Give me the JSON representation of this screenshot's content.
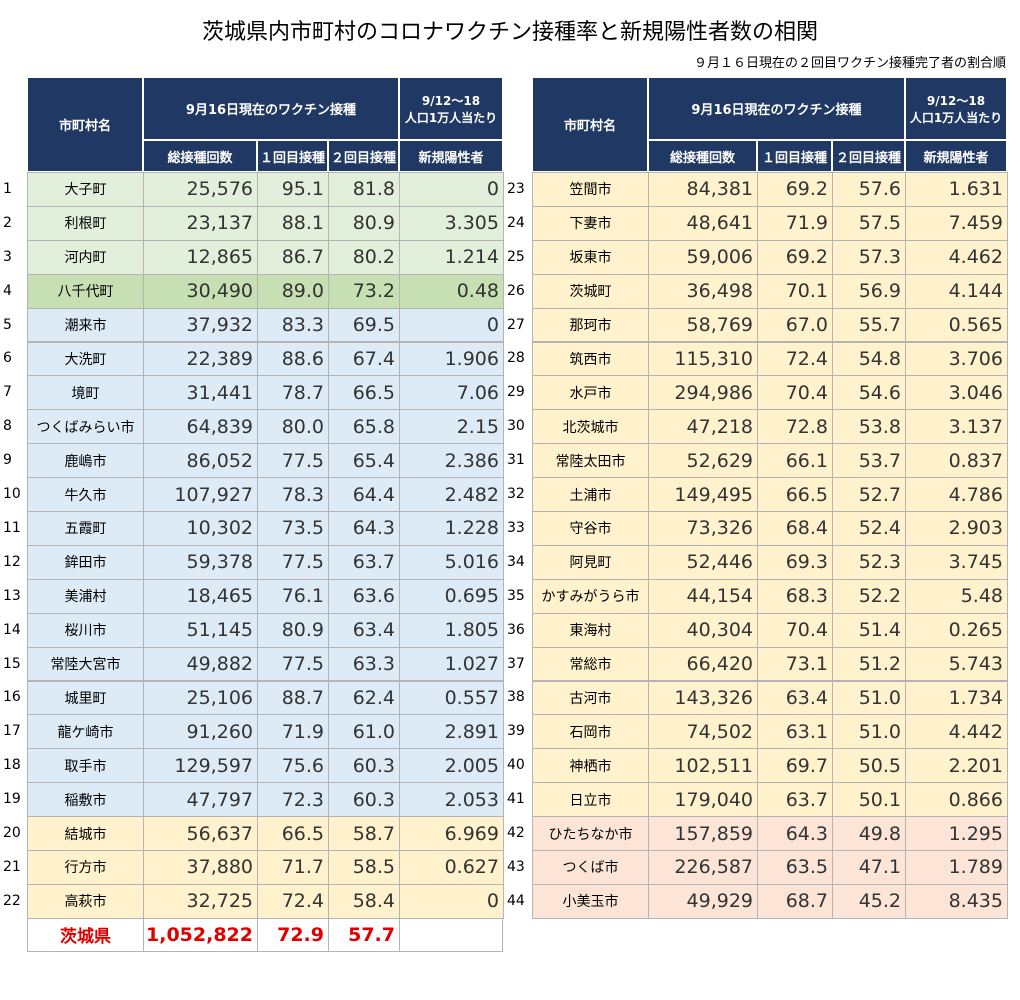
{
  "title": "茨城県内市町村のコロナワクチン接種率と新規陽性者数の相関",
  "subtitle": "９月１６日現在の２回目ワクチン接種完了者の割合順",
  "tables": [
    {
      "header": {
        "name": "市町村名",
        "vaccination": "9月16日現在のワクチン接種",
        "period": "9/12～18",
        "period_note": "人口1万人当たり",
        "total": "総接種回数",
        "first": "１回目接種",
        "second": "２回目接種",
        "new_cases": "新規陽性者"
      },
      "rows": [
        [
          "1",
          "大子町",
          "25,576",
          "95.1",
          "81.8",
          "0"
        ],
        [
          "2",
          "利根町",
          "23,137",
          "88.1",
          "80.9",
          "3.305"
        ],
        [
          "3",
          "河内町",
          "12,865",
          "86.7",
          "80.2",
          "1.214"
        ],
        [
          "4",
          "八千代町",
          "30,490",
          "89.0",
          "73.2",
          "0.48"
        ],
        [
          "5",
          "潮来市",
          "37,932",
          "83.3",
          "69.5",
          "0"
        ],
        [
          "6",
          "大洗町",
          "22,389",
          "88.6",
          "67.4",
          "1.906"
        ],
        [
          "7",
          "境町",
          "31,441",
          "78.7",
          "66.5",
          "7.06"
        ],
        [
          "8",
          "つくばみらい市",
          "64,839",
          "80.0",
          "65.8",
          "2.15"
        ],
        [
          "9",
          "鹿嶋市",
          "86,052",
          "77.5",
          "65.4",
          "2.386"
        ],
        [
          "10",
          "牛久市",
          "107,927",
          "78.3",
          "64.4",
          "2.482"
        ],
        [
          "11",
          "五霞町",
          "10,302",
          "73.5",
          "64.3",
          "1.228"
        ],
        [
          "12",
          "鉾田市",
          "59,378",
          "77.5",
          "63.7",
          "5.016"
        ],
        [
          "13",
          "美浦村",
          "18,465",
          "76.1",
          "63.6",
          "0.695"
        ],
        [
          "14",
          "桜川市",
          "51,145",
          "80.9",
          "63.4",
          "1.805"
        ],
        [
          "15",
          "常陸大宮市",
          "49,882",
          "77.5",
          "63.3",
          "1.027"
        ],
        [
          "16",
          "城里町",
          "25,106",
          "88.7",
          "62.4",
          "0.557"
        ],
        [
          "17",
          "龍ケ崎市",
          "91,260",
          "71.9",
          "61.0",
          "2.891"
        ],
        [
          "18",
          "取手市",
          "129,597",
          "75.6",
          "60.3",
          "2.005"
        ],
        [
          "19",
          "稲敷市",
          "47,797",
          "72.3",
          "60.3",
          "2.053"
        ],
        [
          "20",
          "結城市",
          "56,637",
          "66.5",
          "58.7",
          "6.969"
        ],
        [
          "21",
          "行方市",
          "37,880",
          "71.7",
          "58.5",
          "0.627"
        ],
        [
          "22",
          "高萩市",
          "32,725",
          "72.4",
          "58.4",
          "0"
        ]
      ],
      "row_colors": [
        "#e2efda",
        "#e2efda",
        "#e2efda",
        "#c6e0b4",
        "#ddebf7",
        "#ddebf7",
        "#ddebf7",
        "#ddebf7",
        "#ddebf7",
        "#ddebf7",
        "#ddebf7",
        "#ddebf7",
        "#ddebf7",
        "#ddebf7",
        "#ddebf7",
        "#ddebf7",
        "#ddebf7",
        "#ddebf7",
        "#ddebf7",
        "#fff2cc",
        "#fff2cc",
        "#fff2cc"
      ],
      "total_row": [
        "茨城県",
        "1,052,822",
        "72.9",
        "57.7"
      ]
    },
    {
      "header": {
        "name": "市町村名",
        "vaccination": "9月16日現在のワクチン接種",
        "period": "9/12～18",
        "period_note": "人口1万人当たり",
        "total": "総接種回数",
        "first": "１回目接種",
        "second": "２回目接種",
        "new_cases": "新規陽性者"
      },
      "rows": [
        [
          "23",
          "笠間市",
          "84,381",
          "69.2",
          "57.6",
          "1.631"
        ],
        [
          "24",
          "下妻市",
          "48,641",
          "71.9",
          "57.5",
          "7.459"
        ],
        [
          "25",
          "坂東市",
          "59,006",
          "69.2",
          "57.3",
          "4.462"
        ],
        [
          "26",
          "茨城町",
          "36,498",
          "70.1",
          "56.9",
          "4.144"
        ],
        [
          "27",
          "那珂市",
          "58,769",
          "67.0",
          "55.7",
          "0.565"
        ],
        [
          "28",
          "筑西市",
          "115,310",
          "72.4",
          "54.8",
          "3.706"
        ],
        [
          "29",
          "水戸市",
          "294,986",
          "70.4",
          "54.6",
          "3.046"
        ],
        [
          "30",
          "北茨城市",
          "47,218",
          "72.8",
          "53.8",
          "3.137"
        ],
        [
          "31",
          "常陸太田市",
          "52,629",
          "66.1",
          "53.7",
          "0.837"
        ],
        [
          "32",
          "土浦市",
          "149,495",
          "66.5",
          "52.7",
          "4.786"
        ],
        [
          "33",
          "守谷市",
          "73,326",
          "68.4",
          "52.4",
          "2.903"
        ],
        [
          "34",
          "阿見町",
          "52,446",
          "69.3",
          "52.3",
          "3.745"
        ],
        [
          "35",
          "かすみがうら市",
          "44,154",
          "68.3",
          "52.2",
          "5.48"
        ],
        [
          "36",
          "東海村",
          "40,304",
          "70.4",
          "51.4",
          "0.265"
        ],
        [
          "37",
          "常総市",
          "66,420",
          "73.1",
          "51.2",
          "5.743"
        ],
        [
          "38",
          "古河市",
          "143,326",
          "63.4",
          "51.0",
          "1.734"
        ],
        [
          "39",
          "石岡市",
          "74,502",
          "63.1",
          "51.0",
          "4.442"
        ],
        [
          "40",
          "神栖市",
          "102,511",
          "69.7",
          "50.5",
          "2.201"
        ],
        [
          "41",
          "日立市",
          "179,040",
          "63.7",
          "50.1",
          "0.866"
        ],
        [
          "42",
          "ひたちなか市",
          "157,859",
          "64.3",
          "49.8",
          "1.295"
        ],
        [
          "43",
          "つくば市",
          "226,587",
          "63.5",
          "47.1",
          "1.789"
        ],
        [
          "44",
          "小美玉市",
          "49,929",
          "68.7",
          "45.2",
          "8.435"
        ]
      ],
      "row_colors": [
        "#fff2cc",
        "#fff2cc",
        "#fff2cc",
        "#fff2cc",
        "#fff2cc",
        "#fff2cc",
        "#fff2cc",
        "#fff2cc",
        "#fff2cc",
        "#fff2cc",
        "#fff2cc",
        "#fff2cc",
        "#fff2cc",
        "#fff2cc",
        "#fff2cc",
        "#fff2cc",
        "#fff2cc",
        "#fff2cc",
        "#fff2cc",
        "#fce4d6",
        "#fce4d6",
        "#fce4d6"
      ]
    }
  ]
}
